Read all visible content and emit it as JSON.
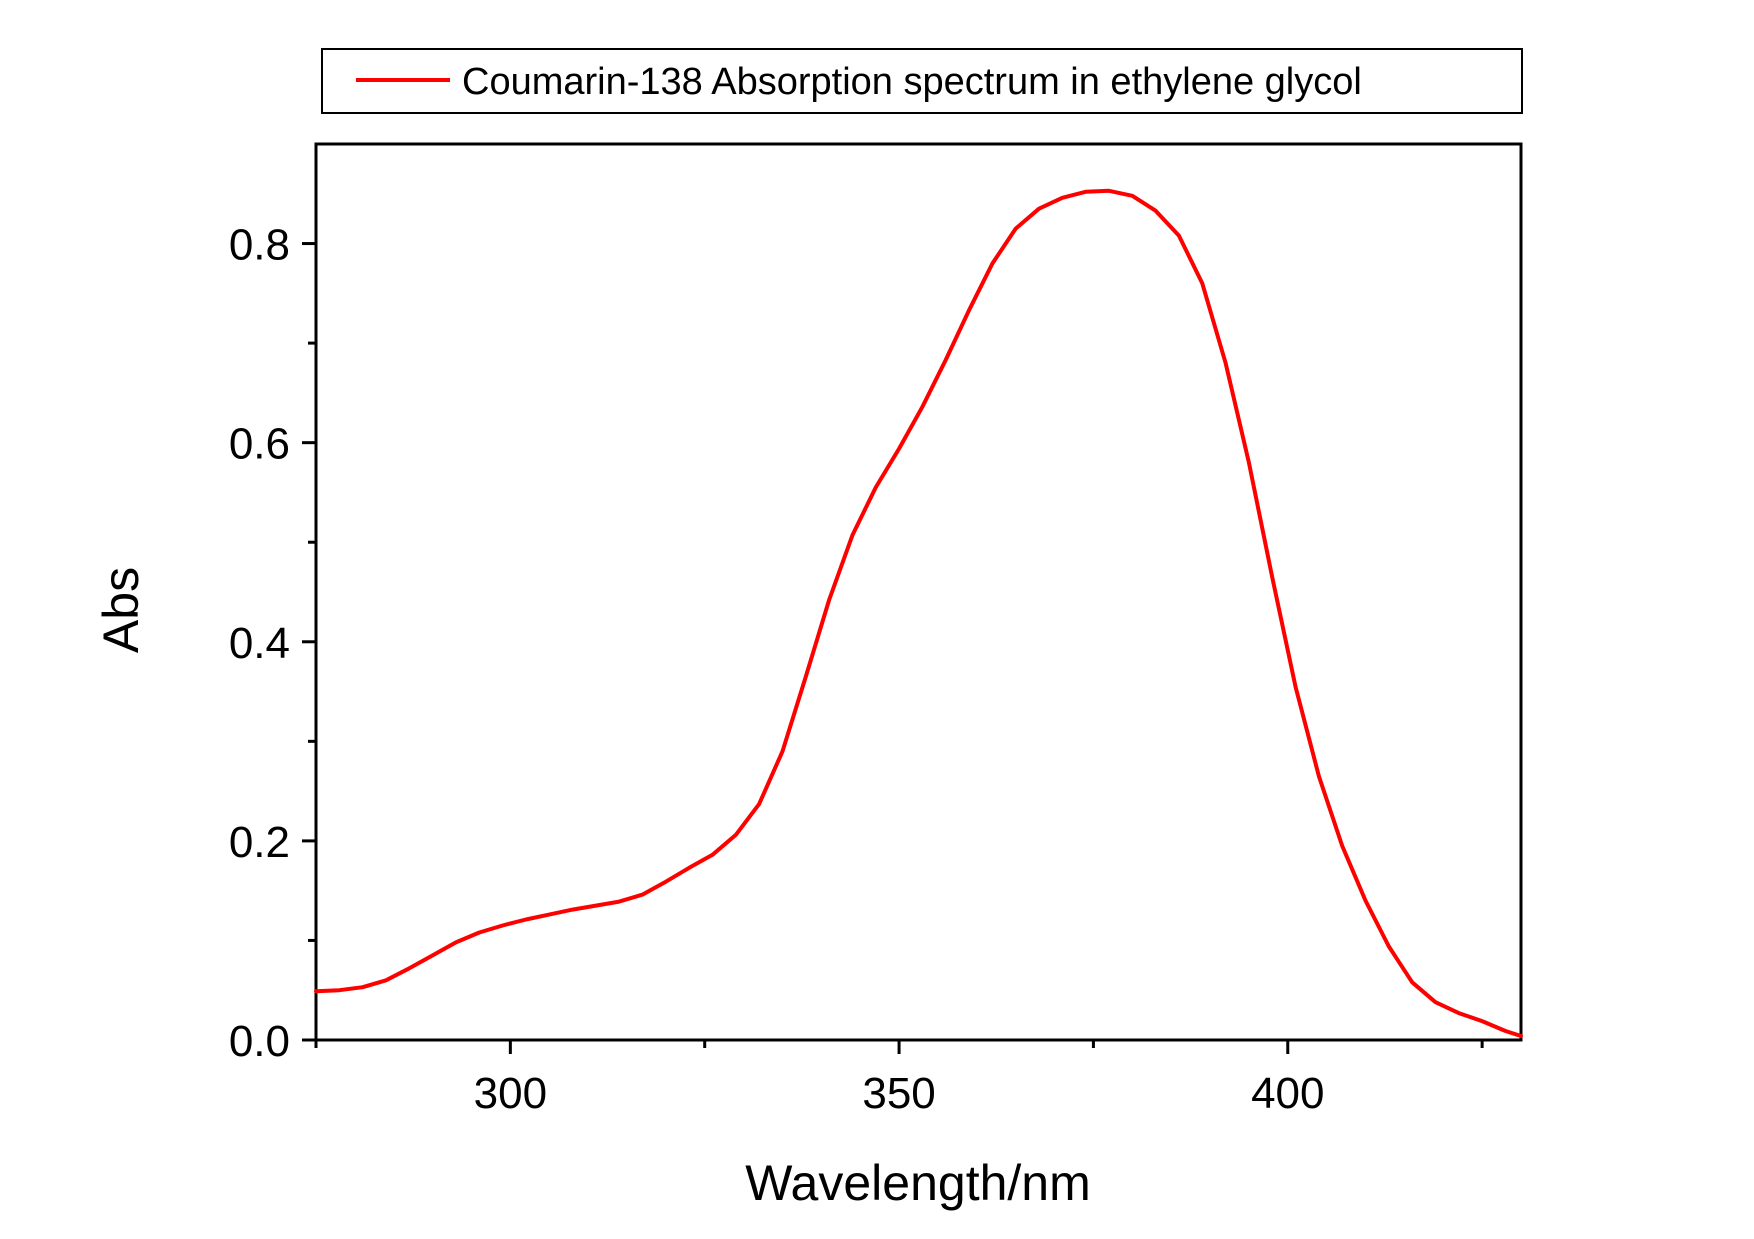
{
  "chart_data": {
    "type": "line",
    "xlabel": "Wavelength/nm",
    "ylabel": "Abs",
    "xlim": [
      275,
      430
    ],
    "ylim": [
      0,
      0.9
    ],
    "x_ticks": [
      300,
      350,
      400
    ],
    "x_tick_labels": [
      "300",
      "350",
      "400"
    ],
    "x_minor_ticks": [
      275,
      325,
      375,
      425
    ],
    "y_ticks": [
      0.0,
      0.2,
      0.4,
      0.6,
      0.8
    ],
    "y_tick_labels": [
      "0.0",
      "0.2",
      "0.4",
      "0.6",
      "0.8"
    ],
    "y_minor_ticks": [
      0.1,
      0.3,
      0.5,
      0.7
    ],
    "grid": false,
    "legend_position": "top",
    "series": [
      {
        "name": "Coumarin-138 Absorption spectrum in ethylene glycol",
        "color": "#ff0000",
        "x": [
          275,
          278,
          281,
          284,
          287,
          290,
          293,
          296,
          299,
          302,
          305,
          308,
          311,
          314,
          317,
          320,
          323,
          326,
          329,
          332,
          335,
          338,
          341,
          344,
          347,
          350,
          353,
          356,
          359,
          362,
          365,
          368,
          371,
          374,
          377,
          380,
          383,
          386,
          389,
          392,
          395,
          398,
          401,
          404,
          407,
          410,
          413,
          416,
          419,
          422,
          425,
          428,
          430
        ],
        "y": [
          0.049,
          0.05,
          0.053,
          0.06,
          0.072,
          0.085,
          0.098,
          0.108,
          0.115,
          0.121,
          0.126,
          0.131,
          0.135,
          0.139,
          0.146,
          0.159,
          0.173,
          0.186,
          0.206,
          0.237,
          0.29,
          0.365,
          0.442,
          0.507,
          0.555,
          0.594,
          0.636,
          0.683,
          0.733,
          0.78,
          0.815,
          0.835,
          0.846,
          0.852,
          0.853,
          0.848,
          0.833,
          0.808,
          0.76,
          0.68,
          0.58,
          0.465,
          0.355,
          0.265,
          0.195,
          0.14,
          0.094,
          0.058,
          0.038,
          0.027,
          0.019,
          0.009,
          0.004
        ]
      }
    ]
  }
}
